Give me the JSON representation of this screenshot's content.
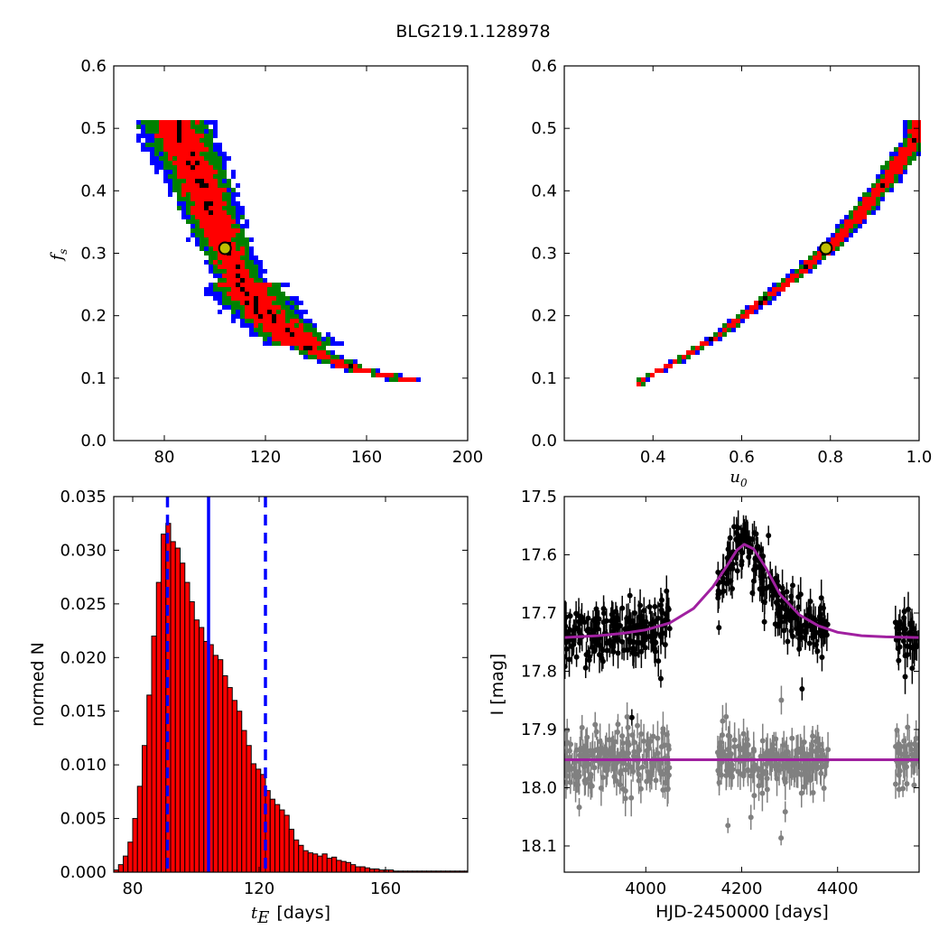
{
  "figure_title": "BLG219.1.128978",
  "chart_data": [
    {
      "type": "heatmap",
      "panel": "tE vs fs",
      "xlabel": "",
      "ylabel": "f_s",
      "ylabel_main": "f",
      "ylabel_sub": "s",
      "xlim": [
        60,
        200
      ],
      "ylim": [
        0.0,
        0.6
      ],
      "xticks": [
        80,
        120,
        160,
        200
      ],
      "xtick_labels": [
        "80",
        "120",
        "160",
        "200"
      ],
      "yticks": [
        0.0,
        0.1,
        0.2,
        0.3,
        0.4,
        0.5,
        0.6
      ],
      "ytick_labels": [
        "0.0",
        "0.1",
        "0.2",
        "0.3",
        "0.4",
        "0.5",
        "0.6"
      ],
      "colors": {
        "outer": "#0000ff",
        "middle": "#008000",
        "inner": "#ff0000",
        "core": "#000000",
        "best_fit_face": "#bfbf00"
      },
      "ridge": [
        [
          84,
          0.51
        ],
        [
          88,
          0.47
        ],
        [
          93,
          0.42
        ],
        [
          98,
          0.37
        ],
        [
          103,
          0.32
        ],
        [
          110,
          0.26
        ],
        [
          118,
          0.21
        ],
        [
          128,
          0.175
        ],
        [
          140,
          0.14
        ],
        [
          155,
          0.115
        ],
        [
          172,
          0.1
        ],
        [
          178,
          0.095
        ]
      ],
      "best_fit": {
        "x": 104,
        "y": 0.308
      }
    },
    {
      "type": "heatmap",
      "panel": "u0 vs fs",
      "xlabel": "u_0",
      "xlabel_main": "u",
      "xlabel_sub": "0",
      "ylabel": "",
      "xlim": [
        0.2,
        1.0
      ],
      "ylim": [
        0.0,
        0.6
      ],
      "xticks": [
        0.4,
        0.6,
        0.8,
        1.0
      ],
      "xtick_labels": [
        "0.4",
        "0.6",
        "0.8",
        "1.0"
      ],
      "yticks": [
        0.0,
        0.1,
        0.2,
        0.3,
        0.4,
        0.5,
        0.6
      ],
      "ytick_labels": [
        "0.0",
        "0.1",
        "0.2",
        "0.3",
        "0.4",
        "0.5",
        "0.6"
      ],
      "colors": {
        "outer": "#0000ff",
        "middle": "#008000",
        "inner": "#ff0000",
        "core": "#000000",
        "best_fit_face": "#bfbf00"
      },
      "ridge": [
        [
          0.37,
          0.095
        ],
        [
          0.45,
          0.125
        ],
        [
          0.55,
          0.17
        ],
        [
          0.65,
          0.225
        ],
        [
          0.75,
          0.28
        ],
        [
          0.8,
          0.31
        ],
        [
          0.87,
          0.365
        ],
        [
          0.93,
          0.42
        ],
        [
          1.0,
          0.49
        ]
      ],
      "best_fit": {
        "x": 0.79,
        "y": 0.308
      }
    },
    {
      "type": "bar",
      "panel": "tE histogram",
      "xlabel_main": "t",
      "xlabel_sub": "E",
      "xlabel_unit": "[days]",
      "ylabel": "normed N",
      "xlim": [
        74,
        186
      ],
      "ylim": [
        0.0,
        0.035
      ],
      "bin_start": 74,
      "bin_width": 1.5,
      "bar_color": "#ff0000",
      "xticks": [
        80,
        120,
        160
      ],
      "xtick_labels": [
        "80",
        "120",
        "160"
      ],
      "yticks": [
        0.0,
        0.005,
        0.01,
        0.015,
        0.02,
        0.025,
        0.03,
        0.035
      ],
      "ytick_labels": [
        "0.000",
        "0.005",
        "0.010",
        "0.015",
        "0.020",
        "0.025",
        "0.030",
        "0.035"
      ],
      "values": [
        0.0002,
        0.0007,
        0.0015,
        0.0028,
        0.005,
        0.008,
        0.0118,
        0.0165,
        0.022,
        0.027,
        0.0315,
        0.0325,
        0.0308,
        0.0302,
        0.0288,
        0.027,
        0.0252,
        0.0235,
        0.0228,
        0.0215,
        0.0212,
        0.0202,
        0.0198,
        0.0183,
        0.0172,
        0.016,
        0.015,
        0.0132,
        0.0118,
        0.0101,
        0.0096,
        0.0091,
        0.0076,
        0.0068,
        0.0063,
        0.0058,
        0.0053,
        0.004,
        0.003,
        0.0025,
        0.002,
        0.0018,
        0.0017,
        0.0015,
        0.0017,
        0.0013,
        0.0014,
        0.0011,
        0.001,
        0.0009,
        0.0007,
        0.0005,
        0.0005,
        0.0004,
        0.0003,
        0.0003,
        0.0002,
        0.0002,
        0.0002,
        0.0001,
        0.0001,
        0.0001,
        0.0001,
        0.0001,
        0.0001,
        0.0001,
        0.0001,
        0.0001,
        0.0001,
        0.0001,
        0.0001,
        0.0001,
        0.0001,
        0.0001,
        0.0001
      ],
      "median": 104,
      "percentile_lines": [
        91,
        122
      ],
      "line_color": "#0000ff"
    },
    {
      "type": "scatter",
      "panel": "light curve",
      "xlabel": "HJD-2450000 [days]",
      "ylabel": "I [mag]",
      "xlim": [
        3830,
        4570
      ],
      "ylim": [
        18.145,
        17.5
      ],
      "y_inverted": true,
      "xticks": [
        4000,
        4200,
        4400
      ],
      "xtick_labels": [
        "4000",
        "4200",
        "4400"
      ],
      "yticks": [
        17.5,
        17.6,
        17.7,
        17.8,
        17.9,
        18.0,
        18.1
      ],
      "ytick_labels": [
        "17.5",
        "17.6",
        "17.7",
        "17.8",
        "17.9",
        "18.0",
        "18.1"
      ],
      "series": [
        {
          "color": "#000000",
          "baseline": 17.742,
          "peak": 17.58,
          "t0": 4205,
          "width": 70,
          "seasons": [
            [
              3830,
              4050
            ],
            [
              4150,
              4380
            ],
            [
              4520,
              4570
            ]
          ]
        },
        {
          "color": "#808080",
          "baseline": 17.952,
          "seasons": [
            [
              3830,
              4050
            ],
            [
              4150,
              4380
            ],
            [
              4520,
              4570
            ]
          ]
        }
      ],
      "model_color": "#a020a0",
      "model": [
        {
          "x": [
            3830,
            3900,
            3950,
            4000,
            4050,
            4100,
            4140,
            4170,
            4190,
            4205,
            4225,
            4250,
            4280,
            4320,
            4360,
            4400,
            4450,
            4500,
            4570
          ],
          "y": [
            17.742,
            17.739,
            17.735,
            17.729,
            17.717,
            17.692,
            17.655,
            17.618,
            17.592,
            17.582,
            17.59,
            17.622,
            17.668,
            17.703,
            17.722,
            17.733,
            17.739,
            17.741,
            17.742
          ]
        },
        {
          "x": [
            3830,
            4570
          ],
          "y": [
            17.952,
            17.952
          ]
        }
      ]
    }
  ]
}
